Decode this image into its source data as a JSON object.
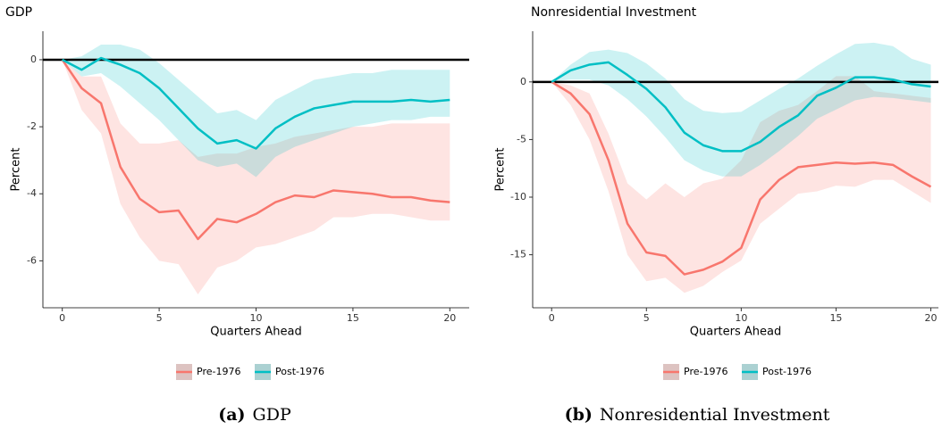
{
  "chart_data": [
    {
      "type": "line",
      "title": "GDP",
      "xlabel": "Quarters Ahead",
      "ylabel": "Percent",
      "caption_label": "(a)",
      "caption": "GDP",
      "x": [
        0,
        1,
        2,
        3,
        4,
        5,
        6,
        7,
        8,
        9,
        10,
        11,
        12,
        13,
        14,
        15,
        16,
        17,
        18,
        19,
        20
      ],
      "xlim": [
        -1,
        21
      ],
      "ylim": [
        -7.4,
        0.85
      ],
      "xticks": [
        0,
        5,
        10,
        15,
        20
      ],
      "yticks": [
        0,
        -2,
        -4,
        -6
      ],
      "hline": 0,
      "series": [
        {
          "name": "Pre-1976",
          "color": "#F8766D",
          "values": [
            0,
            -0.85,
            -1.3,
            -3.2,
            -4.15,
            -4.55,
            -4.5,
            -5.35,
            -4.75,
            -4.85,
            -4.6,
            -4.25,
            -4.05,
            -4.1,
            -3.9,
            -3.95,
            -4.0,
            -4.1,
            -4.1,
            -4.2,
            -4.25
          ],
          "lower": [
            0,
            -1.5,
            -2.2,
            -4.3,
            -5.3,
            -6.0,
            -6.1,
            -7.0,
            -6.2,
            -6.0,
            -5.6,
            -5.5,
            -5.3,
            -5.1,
            -4.7,
            -4.7,
            -4.6,
            -4.6,
            -4.7,
            -4.8,
            -4.8
          ],
          "upper": [
            0,
            -0.5,
            -0.5,
            -1.9,
            -2.5,
            -2.5,
            -2.4,
            -2.9,
            -2.8,
            -2.8,
            -2.6,
            -2.5,
            -2.3,
            -2.2,
            -2.1,
            -2.0,
            -2.0,
            -1.9,
            -1.9,
            -1.9,
            -1.9
          ]
        },
        {
          "name": "Post-1976",
          "color": "#00BFC4",
          "values": [
            0,
            -0.3,
            0.05,
            -0.15,
            -0.4,
            -0.85,
            -1.45,
            -2.05,
            -2.5,
            -2.4,
            -2.65,
            -2.05,
            -1.7,
            -1.45,
            -1.35,
            -1.25,
            -1.25,
            -1.25,
            -1.2,
            -1.25,
            -1.2
          ],
          "lower": [
            0,
            -0.5,
            -0.4,
            -0.8,
            -1.3,
            -1.8,
            -2.4,
            -3.0,
            -3.2,
            -3.1,
            -3.5,
            -2.9,
            -2.6,
            -2.4,
            -2.2,
            -2.0,
            -1.9,
            -1.8,
            -1.8,
            -1.7,
            -1.7
          ],
          "upper": [
            0,
            0.1,
            0.45,
            0.45,
            0.3,
            -0.1,
            -0.6,
            -1.1,
            -1.6,
            -1.5,
            -1.8,
            -1.2,
            -0.9,
            -0.6,
            -0.5,
            -0.4,
            -0.4,
            -0.3,
            -0.3,
            -0.3,
            -0.3
          ]
        }
      ]
    },
    {
      "type": "line",
      "title": "Nonresidential Investment",
      "xlabel": "Quarters Ahead",
      "ylabel": "Percent",
      "caption_label": "(b)",
      "caption": "Nonresidential Investment",
      "x": [
        0,
        1,
        2,
        3,
        4,
        5,
        6,
        7,
        8,
        9,
        10,
        11,
        12,
        13,
        14,
        15,
        16,
        17,
        18,
        19,
        20
      ],
      "xlim": [
        -1,
        20.4
      ],
      "ylim": [
        -19.6,
        4.4
      ],
      "xticks": [
        0,
        5,
        10,
        15,
        20
      ],
      "yticks": [
        0,
        -5,
        -10,
        -15
      ],
      "hline": 0,
      "series": [
        {
          "name": "Pre-1976",
          "color": "#F8766D",
          "values": [
            0,
            -1.0,
            -2.8,
            -6.8,
            -12.3,
            -14.8,
            -15.1,
            -16.7,
            -16.3,
            -15.6,
            -14.4,
            -10.2,
            -8.5,
            -7.4,
            -7.2,
            -7.0,
            -7.1,
            -7.0,
            -7.2,
            -8.2,
            -9.1
          ],
          "lower": [
            0,
            -2.0,
            -5.0,
            -9.5,
            -15.0,
            -17.3,
            -17.0,
            -18.3,
            -17.7,
            -16.5,
            -15.5,
            -12.3,
            -11.0,
            -9.7,
            -9.5,
            -9.0,
            -9.1,
            -8.5,
            -8.5,
            -9.5,
            -10.5
          ],
          "upper": [
            0,
            -0.3,
            -1.0,
            -4.5,
            -8.8,
            -10.2,
            -8.8,
            -10.0,
            -8.8,
            -8.4,
            -6.8,
            -3.5,
            -2.5,
            -2.0,
            -0.8,
            0.5,
            0.5,
            -0.8,
            -1.0,
            -1.2,
            -1.4
          ]
        },
        {
          "name": "Post-1976",
          "color": "#00BFC4",
          "values": [
            0,
            1.0,
            1.5,
            1.7,
            0.6,
            -0.6,
            -2.2,
            -4.4,
            -5.5,
            -6.0,
            -6.0,
            -5.2,
            -3.9,
            -2.9,
            -1.2,
            -0.5,
            0.4,
            0.4,
            0.2,
            -0.2,
            -0.4
          ],
          "lower": [
            0,
            0.2,
            0.2,
            -0.3,
            -1.5,
            -3.0,
            -4.8,
            -6.8,
            -7.7,
            -8.2,
            -8.2,
            -7.2,
            -6.0,
            -4.7,
            -3.2,
            -2.4,
            -1.6,
            -1.3,
            -1.4,
            -1.6,
            -1.8
          ],
          "upper": [
            0,
            1.5,
            2.6,
            2.8,
            2.5,
            1.6,
            0.3,
            -1.5,
            -2.5,
            -2.7,
            -2.6,
            -1.6,
            -0.6,
            0.3,
            1.4,
            2.4,
            3.3,
            3.4,
            3.1,
            2.0,
            1.5
          ]
        }
      ]
    }
  ]
}
